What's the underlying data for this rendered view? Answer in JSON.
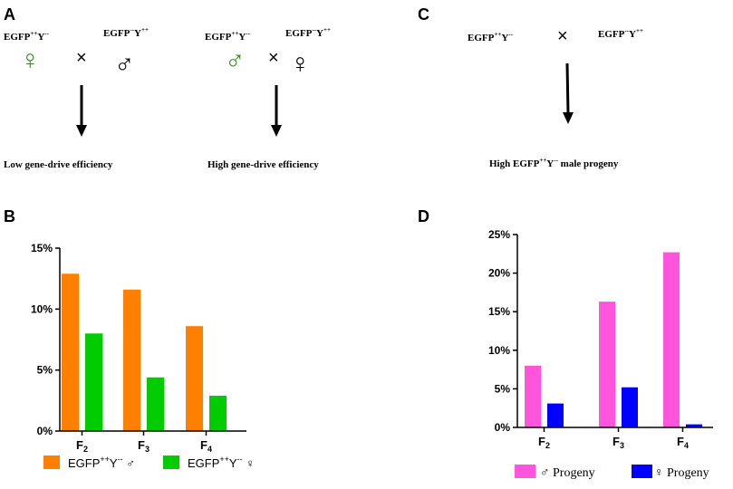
{
  "panels": {
    "A": {
      "letter": "A",
      "cross1": {
        "female_sym": "♀",
        "female_label": [
          "EGFP",
          "++",
          "Y",
          "--"
        ],
        "times": "×",
        "male_label": [
          "EGFP",
          "--",
          "Y",
          "++"
        ],
        "male_sym": "♂",
        "result": "Low gene-drive efficiency"
      },
      "cross2": {
        "male_label": [
          "EGFP",
          "++",
          "Y",
          "--"
        ],
        "male_sym": "♂",
        "times": "×",
        "female_label": [
          "EGFP",
          "--",
          "Y",
          "++"
        ],
        "female_sym": "♀",
        "result": "High gene-drive efficiency"
      }
    },
    "C": {
      "letter": "C",
      "left_label": [
        "EGFP",
        "++",
        "Y",
        "--"
      ],
      "times": "×",
      "right_label": [
        "EGFP",
        "--",
        "Y",
        "++"
      ],
      "result": [
        "High EGFP",
        "++",
        "Y",
        "--",
        " male progeny"
      ]
    },
    "B": {
      "letter": "B"
    },
    "D": {
      "letter": "D"
    }
  },
  "colors": {
    "green_sym": "#3a8a2a",
    "orange": "#ff8000",
    "green": "#00cc00",
    "pink": "#ff55dd",
    "blue": "#0000ff",
    "axis": "#000000"
  },
  "chart_data": [
    {
      "id": "B",
      "type": "bar",
      "categories": [
        "F2",
        "F3",
        "F4"
      ],
      "category_subscripts": [
        [
          "F",
          "2"
        ],
        [
          "F",
          "3"
        ],
        [
          "F",
          "4"
        ]
      ],
      "series": [
        {
          "name": "EGFP++Y-- ♂",
          "label_parts": [
            "EGFP",
            "++",
            "Y",
            "--",
            " ♂"
          ],
          "color": "#ff8000",
          "values": [
            12.9,
            11.6,
            8.6
          ]
        },
        {
          "name": "EGFP++Y-- ♀",
          "label_parts": [
            "EGFP",
            "++",
            "Y",
            "--",
            " ♀"
          ],
          "color": "#00cc00",
          "values": [
            8.0,
            4.4,
            2.9
          ]
        }
      ],
      "ylim": [
        0,
        15
      ],
      "yticks": [
        0,
        5,
        10,
        15
      ],
      "ytick_labels": [
        "0%",
        "5%",
        "10%",
        "15%"
      ],
      "legend": "bottom"
    },
    {
      "id": "D",
      "type": "bar",
      "categories": [
        "F2",
        "F3",
        "F4"
      ],
      "category_subscripts": [
        [
          "F",
          "2"
        ],
        [
          "F",
          "3"
        ],
        [
          "F",
          "4"
        ]
      ],
      "series": [
        {
          "name": "♂ Progeny",
          "label_parts": [
            "♂ Progeny"
          ],
          "color": "#ff55dd",
          "values": [
            8.0,
            16.3,
            22.7
          ]
        },
        {
          "name": "♀ Progeny",
          "label_parts": [
            "♀ Progeny"
          ],
          "color": "#0000ff",
          "values": [
            3.1,
            5.2,
            0.4
          ]
        }
      ],
      "ylim": [
        0,
        25
      ],
      "yticks": [
        0,
        5,
        10,
        15,
        20,
        25
      ],
      "ytick_labels": [
        "0%",
        "5%",
        "10%",
        "15%",
        "20%",
        "25%"
      ],
      "legend": "bottom"
    }
  ]
}
